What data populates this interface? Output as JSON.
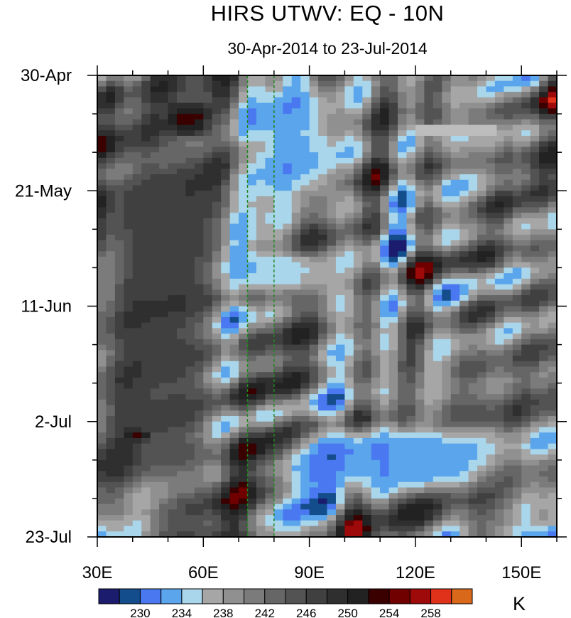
{
  "title": "HIRS UTWV: EQ - 10N",
  "subtitle": "30-Apr-2014 to 23-Jul-2014",
  "chart_data": {
    "type": "heatmap",
    "title": "HIRS UTWV: EQ - 10N",
    "subtitle": "30-Apr-2014 to 23-Jul-2014",
    "x_axis": {
      "label": "",
      "range": [
        30,
        160
      ],
      "ticks": [
        {
          "value": 30,
          "label": "30E"
        },
        {
          "value": 60,
          "label": "60E"
        },
        {
          "value": 90,
          "label": "90E"
        },
        {
          "value": 120,
          "label": "120E"
        },
        {
          "value": 150,
          "label": "150E"
        }
      ],
      "minor_tick_step": 10
    },
    "y_axis": {
      "label": "",
      "direction": "time increasing downward",
      "range": [
        "2014-04-30",
        "2014-07-23"
      ],
      "ticks": [
        {
          "date": "2014-04-30",
          "label": "30-Apr"
        },
        {
          "date": "2014-05-21",
          "label": "21-May"
        },
        {
          "date": "2014-06-11",
          "label": "11-Jun"
        },
        {
          "date": "2014-07-02",
          "label": "2-Jul"
        },
        {
          "date": "2014-07-23",
          "label": "23-Jul"
        }
      ],
      "minor_tick_days": 7
    },
    "reference_lines": [
      {
        "orientation": "vertical",
        "x": 72.5,
        "style": "dashed",
        "color": "#1f8a1f"
      },
      {
        "orientation": "vertical",
        "x": 80,
        "style": "dashed",
        "color": "#1f8a1f"
      }
    ],
    "colorbar": {
      "units": "K",
      "orientation": "horizontal",
      "levels": [
        228,
        230,
        232,
        234,
        236,
        238,
        240,
        242,
        244,
        246,
        248,
        250,
        252,
        254,
        256,
        258,
        260
      ],
      "labels": [
        "230",
        "234",
        "238",
        "242",
        "246",
        "250",
        "254",
        "258"
      ],
      "colors": [
        "#1c1c6e",
        "#144d8c",
        "#4a78f0",
        "#5aa5ec",
        "#a9d6ea",
        "#a6a6a6",
        "#909090",
        "#7b7b7b",
        "#666666",
        "#535353",
        "#404040",
        "#2f2f2f",
        "#222222",
        "#3a0000",
        "#700000",
        "#9e0a0a",
        "#e0321a",
        "#d9681a"
      ]
    },
    "features": [
      {
        "label": "moist band",
        "x_range": [
          72,
          100
        ],
        "date_range": [
          "2014-05-01",
          "2014-05-25"
        ],
        "value_k": 232
      },
      {
        "label": "moist band",
        "x_range": [
          62,
          100
        ],
        "date_range": [
          "2014-06-01",
          "2014-06-09"
        ],
        "value_k": 233
      },
      {
        "label": "moist band",
        "x_range": [
          80,
          145
        ],
        "date_range": [
          "2014-07-03",
          "2014-07-15"
        ],
        "value_k": 231
      },
      {
        "label": "dry region",
        "x_range": [
          30,
          65
        ],
        "date_range": [
          "2014-04-30",
          "2014-07-23"
        ],
        "value_k": 248
      },
      {
        "label": "dry maximum",
        "x_range": [
          50,
          62
        ],
        "date_range": [
          "2014-05-05",
          "2014-05-11"
        ],
        "value_k": 254
      },
      {
        "label": "dry maximum",
        "x_range": [
          38,
          45
        ],
        "date_range": [
          "2014-07-04",
          "2014-07-05"
        ],
        "value_k": 254
      },
      {
        "label": "missing data",
        "x_range": [
          120,
          143
        ],
        "date_range": [
          "2014-05-09",
          "2014-05-11"
        ],
        "value_k": null
      }
    ]
  }
}
